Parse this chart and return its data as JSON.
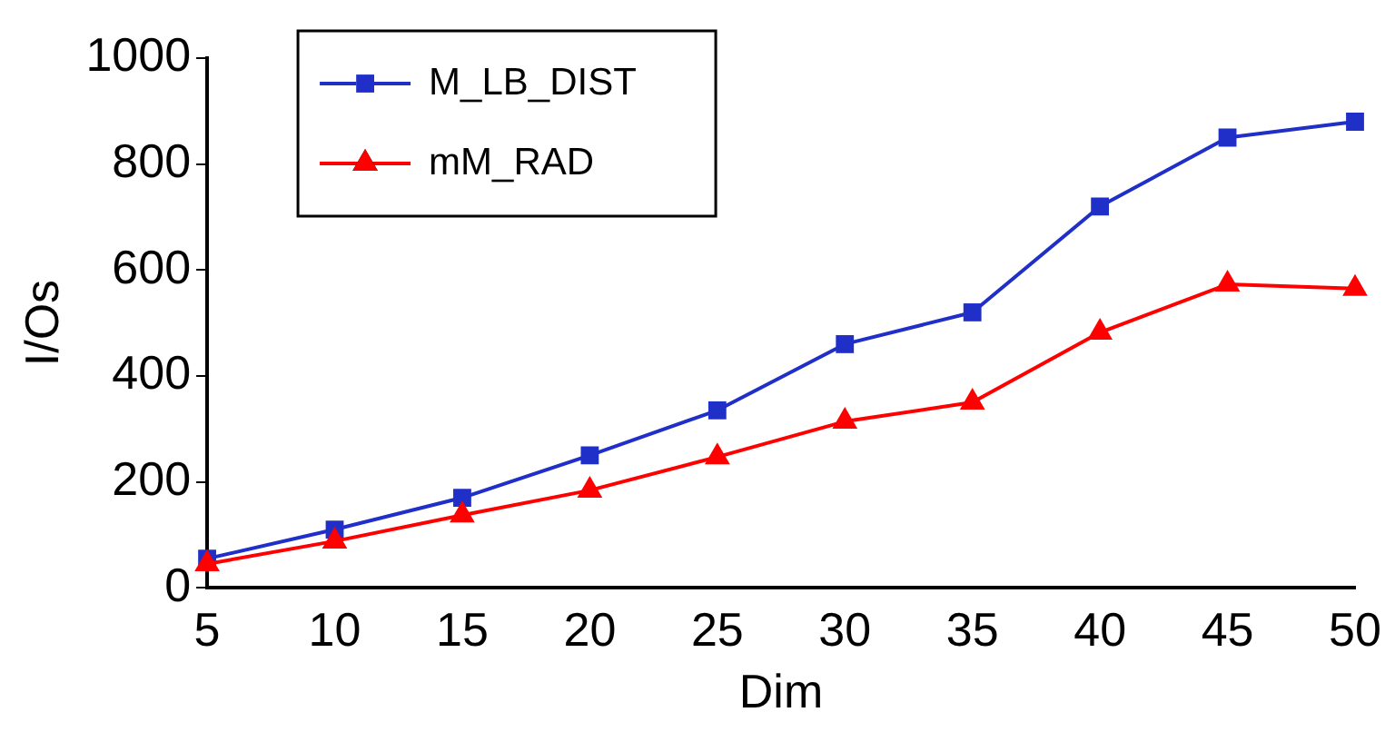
{
  "chart_data": {
    "type": "line",
    "xlabel": "Dim",
    "ylabel": "I/Os",
    "categories": [
      "5",
      "10",
      "15",
      "20",
      "25",
      "30",
      "35",
      "40",
      "45",
      "50"
    ],
    "series": [
      {
        "name": "M_LB_DIST",
        "color": "#1f2fc8",
        "marker": "square",
        "values": [
          55,
          110,
          170,
          250,
          335,
          460,
          520,
          720,
          850,
          880
        ]
      },
      {
        "name": "mM_RAD",
        "color": "#ff0000",
        "marker": "triangle",
        "values": [
          45,
          88,
          137,
          184,
          247,
          314,
          350,
          482,
          573,
          565
        ]
      }
    ],
    "ylim": [
      0,
      1000
    ],
    "yticks": [
      0,
      200,
      400,
      600,
      800,
      1000
    ],
    "grid": false,
    "legend": "top left"
  }
}
